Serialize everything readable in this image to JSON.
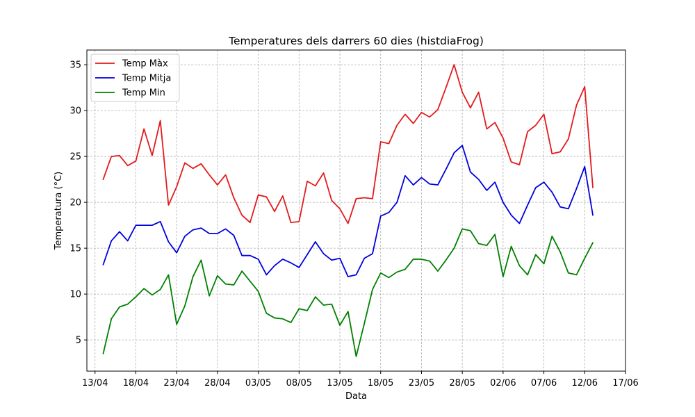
{
  "chart_data": {
    "type": "line",
    "title": "Temperatures dels darrers 60 dies (histdiaFrog)",
    "xlabel": "Data",
    "ylabel": "Temperatura (°C)",
    "x_ticks": [
      "13/04",
      "18/04",
      "23/04",
      "28/04",
      "03/05",
      "08/05",
      "13/05",
      "18/05",
      "23/05",
      "28/05",
      "02/06",
      "07/06",
      "12/06",
      "17/06"
    ],
    "y_ticks": [
      5,
      10,
      15,
      20,
      25,
      30,
      35
    ],
    "xlim": [
      "12/04",
      "17/06"
    ],
    "ylim": [
      1.6,
      36.6
    ],
    "grid": true,
    "legend_position": "top-left",
    "x": [
      "14/04",
      "15/04",
      "16/04",
      "17/04",
      "18/04",
      "19/04",
      "20/04",
      "21/04",
      "22/04",
      "23/04",
      "24/04",
      "25/04",
      "26/04",
      "27/04",
      "28/04",
      "29/04",
      "30/04",
      "01/05",
      "02/05",
      "03/05",
      "04/05",
      "05/05",
      "06/05",
      "07/05",
      "08/05",
      "09/05",
      "10/05",
      "11/05",
      "12/05",
      "13/05",
      "14/05",
      "15/05",
      "16/05",
      "17/05",
      "18/05",
      "19/05",
      "20/05",
      "21/05",
      "22/05",
      "23/05",
      "24/05",
      "25/05",
      "26/05",
      "27/05",
      "28/05",
      "29/05",
      "30/05",
      "31/05",
      "01/06",
      "02/06",
      "03/06",
      "04/06",
      "05/06",
      "06/06",
      "07/06",
      "08/06",
      "09/06",
      "10/06",
      "11/06",
      "12/06",
      "13/06"
    ],
    "series": [
      {
        "name": "Temp Màx",
        "color": "#e31a1c",
        "values": [
          22.5,
          25.0,
          25.1,
          24.0,
          24.5,
          28.0,
          25.1,
          28.9,
          19.7,
          21.7,
          24.3,
          23.7,
          24.2,
          23.0,
          21.9,
          23.0,
          20.5,
          18.6,
          17.8,
          20.8,
          20.6,
          19.0,
          20.7,
          17.8,
          17.9,
          22.3,
          21.8,
          23.2,
          20.2,
          19.3,
          17.7,
          20.4,
          20.5,
          20.4,
          26.6,
          26.4,
          28.4,
          29.6,
          28.6,
          29.8,
          29.3,
          30.1,
          32.5,
          35.0,
          32.0,
          30.3,
          32.0,
          28.0,
          28.7,
          27.0,
          24.4,
          24.1,
          27.7,
          28.4,
          29.6,
          25.3,
          25.5,
          26.9,
          30.6,
          32.6,
          21.6
        ]
      },
      {
        "name": "Temp Mitja",
        "color": "#0000e0",
        "values": [
          13.2,
          15.8,
          16.8,
          15.8,
          17.5,
          17.5,
          17.5,
          17.9,
          15.7,
          14.5,
          16.3,
          17.0,
          17.2,
          16.6,
          16.6,
          17.1,
          16.4,
          14.2,
          14.2,
          13.8,
          12.1,
          13.1,
          13.8,
          13.4,
          12.9,
          14.3,
          15.7,
          14.4,
          13.7,
          13.9,
          11.9,
          12.1,
          13.9,
          14.4,
          18.5,
          18.9,
          20.0,
          22.9,
          21.9,
          22.7,
          22.0,
          21.9,
          23.6,
          25.4,
          26.2,
          23.3,
          22.5,
          21.3,
          22.2,
          20.0,
          18.6,
          17.7,
          19.7,
          21.6,
          22.2,
          21.1,
          19.5,
          19.3,
          21.5,
          23.9,
          18.6
        ]
      },
      {
        "name": "Temp Min",
        "color": "#008000",
        "values": [
          3.5,
          7.3,
          8.6,
          8.9,
          9.7,
          10.6,
          9.9,
          10.5,
          12.1,
          6.7,
          8.7,
          11.9,
          13.7,
          9.8,
          12.0,
          11.1,
          11.0,
          12.5,
          11.4,
          10.3,
          7.9,
          7.4,
          7.3,
          6.9,
          8.4,
          8.2,
          9.7,
          8.8,
          8.9,
          6.6,
          8.1,
          3.2,
          6.8,
          10.5,
          12.3,
          11.8,
          12.4,
          12.7,
          13.8,
          13.8,
          13.6,
          12.5,
          13.7,
          15.0,
          17.1,
          16.9,
          15.5,
          15.3,
          16.5,
          11.9,
          15.2,
          13.1,
          12.1,
          14.3,
          13.3,
          16.3,
          14.6,
          12.3,
          12.1,
          13.9,
          15.6
        ]
      }
    ]
  }
}
